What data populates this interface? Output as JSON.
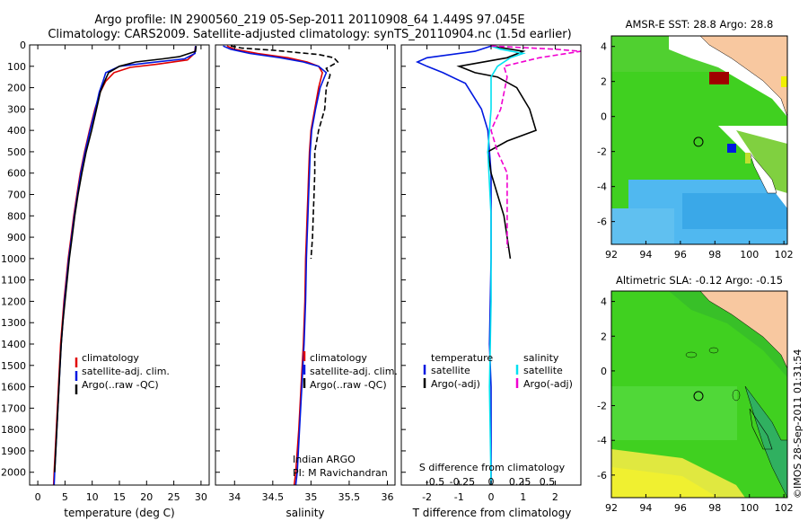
{
  "header": {
    "line1": "Argo profile: IN 2900560_219 05-Sep-2011 20110908_64 1.449S 97.045E",
    "line2": "Climatology: CARS2009. Satellite-adjusted climatology: synTS_20110904.nc (1.5d earlier)"
  },
  "credit": "©IMOS 28-Sep-2011 01:31:54",
  "colors": {
    "climatology": "#e00000",
    "satellite": "#0018e0",
    "argo": "#000000",
    "sal_sat": "#00e0f0",
    "sal_argo": "#f000d0",
    "land": "#f8c8a0",
    "ocean_green": "#40d020",
    "ocean_blue": "#50b8f0"
  },
  "chart_data": [
    {
      "type": "line",
      "name": "temperature",
      "xlabel": "temperature (deg C)",
      "xticks": [
        0,
        5,
        10,
        15,
        20,
        25,
        30
      ],
      "xlim": [
        -1.5,
        31.5
      ],
      "ylim": [
        2060,
        0
      ],
      "yticks": [
        0,
        100,
        200,
        300,
        400,
        500,
        600,
        700,
        800,
        900,
        1000,
        1100,
        1200,
        1300,
        1400,
        1500,
        1600,
        1700,
        1800,
        1900,
        2000
      ],
      "legend": [
        "climatology",
        "satellite-adj. clim.",
        "Argo(..raw -QC)"
      ],
      "series": [
        {
          "name": "climatology",
          "color": "#e00000",
          "dash": "",
          "points": [
            [
              29,
              5
            ],
            [
              28.8,
              40
            ],
            [
              27.5,
              70
            ],
            [
              22,
              90
            ],
            [
              17,
              105
            ],
            [
              14,
              130
            ],
            [
              12.5,
              170
            ],
            [
              11.5,
              220
            ],
            [
              10.5,
              300
            ],
            [
              9.5,
              400
            ],
            [
              8.6,
              500
            ],
            [
              7.8,
              600
            ],
            [
              7.2,
              700
            ],
            [
              6.6,
              800
            ],
            [
              6.1,
              900
            ],
            [
              5.6,
              1000
            ],
            [
              5.2,
              1100
            ],
            [
              4.8,
              1200
            ],
            [
              4.5,
              1300
            ],
            [
              4.2,
              1400
            ],
            [
              4.0,
              1500
            ],
            [
              3.8,
              1600
            ],
            [
              3.6,
              1700
            ],
            [
              3.4,
              1800
            ],
            [
              3.2,
              1900
            ],
            [
              3.0,
              2000
            ],
            [
              2.9,
              2060
            ]
          ]
        },
        {
          "name": "satellite",
          "color": "#0018e0",
          "dash": "",
          "points": [
            [
              29,
              5
            ],
            [
              28.9,
              40
            ],
            [
              27,
              65
            ],
            [
              20,
              85
            ],
            [
              15,
              100
            ],
            [
              12.5,
              130
            ],
            [
              12,
              170
            ],
            [
              11.3,
              220
            ],
            [
              10.6,
              300
            ],
            [
              9.6,
              400
            ],
            [
              8.7,
              500
            ],
            [
              7.9,
              600
            ],
            [
              7.3,
              700
            ],
            [
              6.7,
              800
            ],
            [
              6.2,
              900
            ],
            [
              5.7,
              1000
            ],
            [
              5.3,
              1100
            ],
            [
              4.9,
              1200
            ],
            [
              4.6,
              1300
            ],
            [
              4.3,
              1400
            ],
            [
              4.1,
              1500
            ],
            [
              3.9,
              1600
            ],
            [
              3.7,
              1700
            ],
            [
              3.5,
              1800
            ],
            [
              3.3,
              1900
            ],
            [
              3.1,
              2000
            ],
            [
              3.0,
              2060
            ]
          ]
        },
        {
          "name": "argo",
          "color": "#000000",
          "dash": "",
          "points": [
            [
              29.1,
              5
            ],
            [
              29,
              30
            ],
            [
              26,
              55
            ],
            [
              23,
              65
            ],
            [
              18,
              80
            ],
            [
              15,
              100
            ],
            [
              13,
              130
            ],
            [
              12.3,
              170
            ],
            [
              11.5,
              220
            ],
            [
              10.8,
              300
            ],
            [
              9.9,
              400
            ],
            [
              8.9,
              500
            ],
            [
              8.1,
              600
            ],
            [
              7.4,
              700
            ],
            [
              6.8,
              800
            ],
            [
              6.3,
              900
            ],
            [
              5.8,
              1000
            ],
            [
              5.4,
              1100
            ],
            [
              5.0,
              1200
            ],
            [
              4.6,
              1300
            ],
            [
              4.3,
              1400
            ],
            [
              4.1,
              1500
            ],
            [
              3.9,
              1600
            ],
            [
              3.7,
              1700
            ],
            [
              3.5,
              1800
            ],
            [
              3.3,
              1900
            ],
            [
              3.1,
              2000
            ]
          ]
        }
      ]
    },
    {
      "type": "line",
      "name": "salinity",
      "xlabel": "salinity",
      "xticks": [
        34,
        34.5,
        35,
        35.5,
        36
      ],
      "xlim": [
        33.75,
        36.1
      ],
      "ylim": [
        2060,
        0
      ],
      "legend": [
        "climatology",
        "satellite-adj. clim.",
        "Argo(..raw -QC)"
      ],
      "annotation": [
        "Indian ARGO",
        "PI: M Ravichandran"
      ],
      "series": [
        {
          "name": "climatology",
          "color": "#e00000",
          "dash": "",
          "points": [
            [
              33.9,
              5
            ],
            [
              34.0,
              20
            ],
            [
              34.3,
              40
            ],
            [
              34.7,
              60
            ],
            [
              34.95,
              80
            ],
            [
              35.1,
              100
            ],
            [
              35.15,
              130
            ],
            [
              35.1,
              200
            ],
            [
              35.05,
              300
            ],
            [
              35.0,
              400
            ],
            [
              34.98,
              500
            ],
            [
              34.97,
              600
            ],
            [
              34.96,
              700
            ],
            [
              34.95,
              800
            ],
            [
              34.94,
              900
            ],
            [
              34.93,
              1000
            ],
            [
              34.92,
              1200
            ],
            [
              34.9,
              1400
            ],
            [
              34.87,
              1600
            ],
            [
              34.84,
              1800
            ],
            [
              34.8,
              2000
            ],
            [
              34.78,
              2060
            ]
          ]
        },
        {
          "name": "satellite",
          "color": "#0018e0",
          "dash": "",
          "points": [
            [
              33.85,
              5
            ],
            [
              33.95,
              20
            ],
            [
              34.2,
              40
            ],
            [
              34.6,
              60
            ],
            [
              34.9,
              80
            ],
            [
              35.1,
              100
            ],
            [
              35.2,
              130
            ],
            [
              35.12,
              200
            ],
            [
              35.06,
              300
            ],
            [
              35.01,
              400
            ],
            [
              34.99,
              500
            ],
            [
              34.98,
              600
            ],
            [
              34.97,
              700
            ],
            [
              34.96,
              800
            ],
            [
              34.95,
              900
            ],
            [
              34.94,
              1000
            ],
            [
              34.93,
              1200
            ],
            [
              34.91,
              1400
            ],
            [
              34.88,
              1600
            ],
            [
              34.85,
              1800
            ],
            [
              34.82,
              2000
            ],
            [
              34.8,
              2060
            ]
          ]
        },
        {
          "name": "argo",
          "color": "#000000",
          "dash": "6,3",
          "points": [
            [
              33.95,
              5
            ],
            [
              34.1,
              15
            ],
            [
              34.5,
              25
            ],
            [
              34.8,
              35
            ],
            [
              35.1,
              45
            ],
            [
              35.3,
              60
            ],
            [
              35.35,
              80
            ],
            [
              35.2,
              110
            ],
            [
              35.25,
              140
            ],
            [
              35.2,
              200
            ],
            [
              35.18,
              300
            ],
            [
              35.1,
              400
            ],
            [
              35.05,
              500
            ],
            [
              35.05,
              600
            ],
            [
              35.04,
              700
            ],
            [
              35.03,
              800
            ],
            [
              35.02,
              900
            ],
            [
              35.0,
              1000
            ]
          ]
        }
      ]
    },
    {
      "type": "line",
      "name": "difference",
      "xlabel": "T difference from climatology",
      "xlabel_top": "S difference from climatology",
      "xticks": [
        -2,
        -1,
        0,
        1,
        2
      ],
      "sticks": [
        "-0.5",
        "-0.25",
        "0",
        "0.25",
        "0.5"
      ],
      "xlim": [
        -2.8,
        2.8
      ],
      "ylim": [
        2060,
        0
      ],
      "legend_title_t": "temperature",
      "legend_title_s": "salinity",
      "legend": [
        "satellite",
        "Argo(-adj)",
        "satellite",
        "Argo(-adj)"
      ],
      "series": [
        {
          "name": "T satellite",
          "color": "#0018e0",
          "dash": "",
          "points": [
            [
              0,
              5
            ],
            [
              -0.5,
              30
            ],
            [
              -2,
              60
            ],
            [
              -2.3,
              80
            ],
            [
              -2,
              100
            ],
            [
              -1.5,
              130
            ],
            [
              -0.8,
              180
            ],
            [
              -0.3,
              300
            ],
            [
              -0.1,
              400
            ],
            [
              0,
              600
            ],
            [
              0,
              1000
            ],
            [
              -0.05,
              1400
            ],
            [
              0,
              1600
            ],
            [
              0,
              1800
            ],
            [
              0,
              2060
            ]
          ]
        },
        {
          "name": "T argo",
          "color": "#000000",
          "dash": "",
          "points": [
            [
              0,
              5
            ],
            [
              1.0,
              30
            ],
            [
              0.5,
              60
            ],
            [
              -1,
              100
            ],
            [
              -0.5,
              130
            ],
            [
              0.2,
              150
            ],
            [
              0.8,
              200
            ],
            [
              1.2,
              300
            ],
            [
              1.4,
              400
            ],
            [
              0.5,
              450
            ],
            [
              -0.1,
              500
            ],
            [
              0,
              600
            ],
            [
              0.2,
              700
            ],
            [
              0.4,
              800
            ],
            [
              0.5,
              900
            ],
            [
              0.6,
              1000
            ]
          ]
        },
        {
          "name": "S satellite",
          "color": "#00e0f0",
          "dash": "",
          "points": [
            [
              0,
              5
            ],
            [
              0.3,
              20
            ],
            [
              1,
              40
            ],
            [
              0.6,
              60
            ],
            [
              0.2,
              100
            ],
            [
              0,
              150
            ],
            [
              0,
              300
            ],
            [
              -0.1,
              500
            ],
            [
              0,
              800
            ],
            [
              0,
              1200
            ],
            [
              -0.05,
              1600
            ],
            [
              0,
              2060
            ]
          ]
        },
        {
          "name": "S argo",
          "color": "#f000d0",
          "dash": "6,3",
          "points": [
            [
              0,
              5
            ],
            [
              2,
              20
            ],
            [
              2.8,
              30
            ],
            [
              1.5,
              60
            ],
            [
              0.4,
              100
            ],
            [
              0.5,
              150
            ],
            [
              0.3,
              300
            ],
            [
              0,
              400
            ],
            [
              0.2,
              500
            ],
            [
              0.5,
              600
            ],
            [
              0.5,
              800
            ],
            [
              0.5,
              950
            ]
          ]
        }
      ]
    },
    {
      "type": "heatmap",
      "name": "sst-map",
      "title": "AMSR-E SST: 28.8 Argo: 28.8",
      "xticks": [
        92,
        94,
        96,
        98,
        100,
        102
      ],
      "yticks": [
        4,
        2,
        0,
        -2,
        -4,
        -6
      ],
      "xlim": [
        92,
        102.2
      ],
      "ylim": [
        -7.3,
        4.6
      ],
      "marker": [
        97.05,
        -1.45
      ]
    },
    {
      "type": "heatmap",
      "name": "sla-map",
      "title": "Altimetric SLA: -0.12 Argo: -0.15",
      "xticks": [
        92,
        94,
        96,
        98,
        100,
        102
      ],
      "yticks": [
        4,
        2,
        0,
        -2,
        -4,
        -6
      ],
      "xlim": [
        92,
        102.2
      ],
      "ylim": [
        -7.3,
        4.6
      ],
      "marker": [
        97.05,
        -1.45
      ]
    }
  ]
}
